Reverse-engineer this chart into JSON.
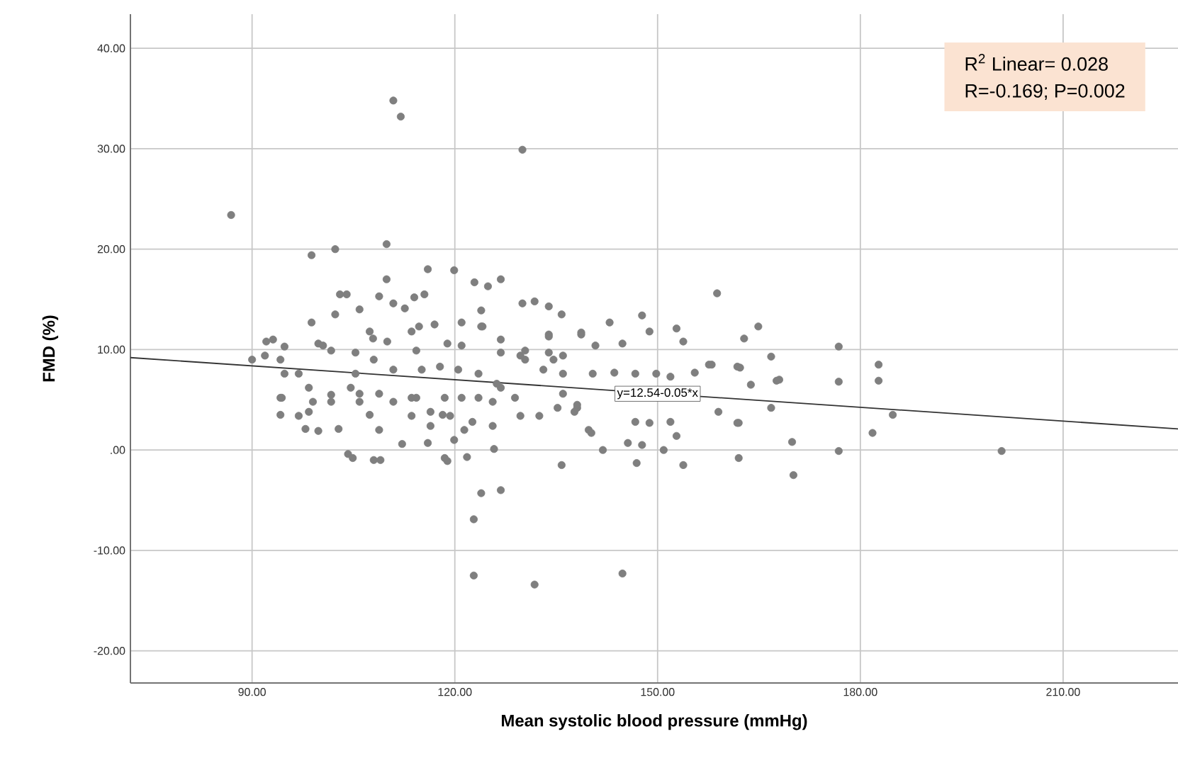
{
  "chart_data": {
    "type": "scatter",
    "xlabel": "Mean systolic blood pressure (mmHg)",
    "ylabel": "FMD (%)",
    "xlim": [
      72,
      227
    ],
    "ylim": [
      -23.2,
      43.4
    ],
    "xticks": [
      {
        "value": 90,
        "label": "90.00"
      },
      {
        "value": 120,
        "label": "120.00"
      },
      {
        "value": 150,
        "label": "150.00"
      },
      {
        "value": 180,
        "label": "180.00"
      },
      {
        "value": 210,
        "label": "210.00"
      }
    ],
    "yticks": [
      {
        "value": -20,
        "label": "-20.00"
      },
      {
        "value": -10,
        "label": "-10.00"
      },
      {
        "value": 0,
        "label": ".00"
      },
      {
        "value": 10,
        "label": "10.00"
      },
      {
        "value": 20,
        "label": "20.00"
      },
      {
        "value": 30,
        "label": "30.00"
      },
      {
        "value": 40,
        "label": "40.00"
      }
    ],
    "grid": true,
    "marker": "circle",
    "series": [
      {
        "color": "#7f7f7f",
        "x": [
          86.9,
          110.9,
          112,
          130,
          98.8,
          102.3,
          109.9,
          109.9,
          116,
          119.9,
          122.9,
          124.9,
          126.8,
          130,
          131.8,
          133.9,
          135.8,
          103,
          104,
          102.3,
          98.8,
          105.9,
          108.8,
          110.9,
          112.6,
          114,
          115.5,
          117,
          114.7,
          121,
          123.9,
          123.9,
          126.8,
          133.9,
          138.7,
          92.1,
          93.1,
          90,
          91.9,
          94.8,
          99.8,
          101.7,
          105.3,
          107.9,
          110,
          114.3,
          118.9,
          121,
          126.8,
          130.4,
          133.9,
          136,
          158.8,
          147.7,
          142.9,
          148.8,
          152.8,
          153.8,
          164.9,
          162.8,
          176.8,
          166.8,
          182.7,
          182.7,
          176.8,
          168,
          163.8,
          162.2,
          157.6,
          138.7,
          140.8,
          144.8,
          184.8,
          181.8,
          176.8,
          200.9,
          169.9,
          170.1,
          166.8,
          162,
          162,
          153.8,
          152.8,
          150.9,
          146.9,
          147.7,
          145.6,
          144.8,
          141.9,
          139.8,
          151.9,
          148.8,
          159,
          122.8,
          131.8,
          122.8,
          123.9,
          126.8,
          135.8,
          118.9,
          121.8,
          125.8,
          104.2,
          104.9,
          108,
          109,
          112.2,
          116,
          119.9,
          97.9,
          99.8,
          102.8,
          94.2,
          96.9,
          94.2,
          94.8,
          99,
          101.7,
          107.4,
          108.8,
          110.9,
          113.6,
          116.4,
          118.2,
          122.6,
          125.6,
          126.8,
          129.7,
          132.5,
          135.2,
          137.7,
          118.5,
          114.3,
          104.6,
          98.4,
          105.9,
          121,
          123.5,
          105.3,
          108,
          110.9,
          115.1,
          117.8,
          120.5,
          123.5,
          126.2,
          128.9,
          130.4,
          133.1,
          136,
          105.9,
          108.8,
          113.6,
          116.4,
          119.3,
          121.4,
          125.6,
          101.7,
          98.4,
          96.9,
          94.4,
          94.2,
          100.5,
          107.4,
          113.6,
          124.1,
          129.7,
          134.6,
          138.1,
          118.5,
          167.6,
          161.8,
          158,
          155.5,
          151.9,
          149.8,
          146.7,
          143.6,
          140.4,
          138.1,
          146.7,
          161.8,
          140.2,
          133.9,
          136
        ],
        "values": [
          23.4,
          34.8,
          33.2,
          29.9,
          19.4,
          20,
          20.5,
          17,
          18,
          17.9,
          16.7,
          16.3,
          17,
          14.6,
          14.8,
          14.3,
          13.5,
          15.5,
          15.5,
          13.5,
          12.7,
          14,
          15.3,
          14.6,
          14.1,
          15.2,
          15.5,
          12.5,
          12.3,
          12.7,
          13.9,
          12.3,
          11,
          11.5,
          11.7,
          10.8,
          11,
          9,
          9.4,
          10.3,
          10.6,
          9.9,
          9.7,
          11.1,
          10.8,
          9.9,
          10.6,
          10.4,
          9.7,
          9.9,
          9.7,
          9.4,
          15.6,
          13.4,
          12.7,
          11.8,
          12.1,
          10.8,
          12.3,
          11.1,
          10.3,
          9.3,
          8.5,
          6.9,
          6.8,
          7,
          6.5,
          8.2,
          8.5,
          11.5,
          10.4,
          10.6,
          3.5,
          1.7,
          -0.1,
          -0.1,
          0.8,
          -2.5,
          4.2,
          2.7,
          -0.8,
          -1.5,
          1.4,
          0,
          -1.3,
          0.5,
          0.7,
          -12.3,
          0,
          2,
          2.8,
          2.7,
          3.8,
          -12.5,
          -13.4,
          -6.9,
          -4.3,
          -4,
          -1.5,
          -1.1,
          -0.7,
          0.1,
          -0.4,
          -0.8,
          -1,
          -1,
          0.6,
          0.7,
          1,
          2.1,
          1.9,
          2.1,
          3.5,
          3.4,
          5.2,
          7.6,
          4.8,
          5.5,
          3.5,
          2,
          4.8,
          3.4,
          2.4,
          3.5,
          2.8,
          4.8,
          6.2,
          3.4,
          3.4,
          4.2,
          3.8,
          5.2,
          5.2,
          6.2,
          6.2,
          4.8,
          5.2,
          5.2,
          7.6,
          9,
          8,
          8,
          8.3,
          8,
          7.6,
          6.6,
          5.2,
          9,
          8,
          7.6,
          5.6,
          5.6,
          5.2,
          3.8,
          3.4,
          2,
          2.4,
          4.8,
          3.8,
          7.6,
          5.2,
          9,
          10.4,
          11.8,
          11.8,
          12.3,
          9.4,
          9,
          4.2,
          -0.8,
          6.9,
          8.3,
          8.5,
          7.7,
          7.3,
          7.6,
          7.6,
          7.7,
          7.6,
          4.5,
          2.8,
          2.7,
          1.7,
          11.3,
          5.6
        ]
      },
      {
        "type": "line",
        "marker": "none",
        "color": "#333333",
        "x": [
          72,
          227
        ],
        "values": [
          9.2,
          2.1
        ]
      }
    ],
    "annotations": [
      {
        "text": "y=12.54-0.05*x",
        "x": 150,
        "y": 5.6
      },
      "R$^{2}$ Linear= 0.028",
      "R=-0.169; P=0.002"
    ]
  }
}
